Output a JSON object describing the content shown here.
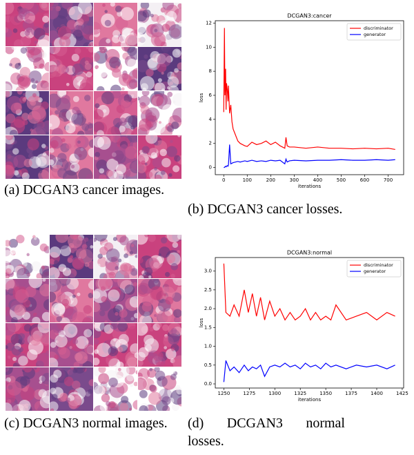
{
  "captions": [
    "(a) DCGAN3 cancer images.",
    "(b) DCGAN3 cancer losses.",
    "(c) DCGAN3 normal images.",
    "(d) DCGAN3 normal losses."
  ],
  "chart_data": [
    {
      "type": "line",
      "title": "DCGAN3:cancer",
      "x_label": "iterations",
      "y_label": "loss",
      "legend": "upper right",
      "x": [
        0,
        3,
        5,
        8,
        10,
        12,
        15,
        18,
        20,
        25,
        30,
        35,
        40,
        50,
        60,
        70,
        80,
        90,
        100,
        120,
        140,
        160,
        180,
        200,
        220,
        240,
        260,
        265,
        270,
        280,
        300,
        350,
        400,
        450,
        500,
        550,
        600,
        650,
        700,
        730
      ],
      "series": [
        {
          "name": "discriminator",
          "color": "#ff0000",
          "values": [
            4.6,
            11.6,
            6.0,
            8.2,
            4.8,
            7.0,
            6.5,
            5.5,
            6.8,
            4.5,
            5.2,
            3.8,
            3.2,
            2.7,
            2.2,
            2.0,
            1.9,
            1.8,
            1.75,
            2.1,
            1.9,
            2.0,
            2.2,
            1.9,
            2.1,
            1.8,
            1.6,
            2.5,
            1.8,
            1.7,
            1.7,
            1.6,
            1.7,
            1.6,
            1.6,
            1.55,
            1.6,
            1.55,
            1.6,
            1.5
          ]
        },
        {
          "name": "generator",
          "color": "#0000ff",
          "values": [
            0.0,
            0.0,
            0.05,
            0.1,
            0.05,
            0.1,
            0.15,
            0.1,
            0.2,
            1.9,
            0.3,
            0.35,
            0.4,
            0.45,
            0.5,
            0.45,
            0.5,
            0.55,
            0.5,
            0.6,
            0.5,
            0.55,
            0.5,
            0.6,
            0.55,
            0.6,
            0.3,
            0.7,
            0.45,
            0.55,
            0.6,
            0.55,
            0.6,
            0.6,
            0.65,
            0.6,
            0.6,
            0.65,
            0.6,
            0.65
          ]
        }
      ],
      "xlim": [
        -36,
        766
      ],
      "xticks": [
        0,
        100,
        200,
        300,
        400,
        500,
        600,
        700
      ],
      "ylim": [
        -0.6,
        12.2
      ],
      "yticks": [
        0,
        2,
        4,
        6,
        8,
        10,
        12
      ]
    },
    {
      "type": "line",
      "title": "DCGAN3:normal",
      "x_label": "iterations",
      "y_label": "loss",
      "legend": "upper right",
      "x": [
        1250,
        1252,
        1256,
        1260,
        1265,
        1270,
        1274,
        1278,
        1282,
        1286,
        1290,
        1295,
        1300,
        1305,
        1310,
        1315,
        1320,
        1325,
        1330,
        1335,
        1340,
        1345,
        1350,
        1355,
        1360,
        1370,
        1380,
        1390,
        1400,
        1410,
        1418
      ],
      "series": [
        {
          "name": "discriminator",
          "color": "#ff0000",
          "values": [
            3.2,
            1.9,
            1.8,
            2.1,
            1.8,
            2.5,
            1.9,
            2.4,
            1.8,
            2.3,
            1.7,
            2.2,
            1.8,
            2.0,
            1.7,
            1.9,
            1.7,
            1.8,
            2.0,
            1.7,
            1.9,
            1.7,
            1.8,
            1.7,
            2.1,
            1.7,
            1.8,
            1.9,
            1.7,
            1.9,
            1.8
          ]
        },
        {
          "name": "generator",
          "color": "#0000ff",
          "values": [
            0.05,
            0.62,
            0.35,
            0.45,
            0.3,
            0.5,
            0.35,
            0.45,
            0.4,
            0.5,
            0.2,
            0.45,
            0.5,
            0.45,
            0.55,
            0.45,
            0.5,
            0.4,
            0.55,
            0.45,
            0.5,
            0.4,
            0.55,
            0.45,
            0.5,
            0.4,
            0.5,
            0.45,
            0.5,
            0.4,
            0.5
          ]
        }
      ],
      "xlim": [
        1241.6,
        1426.4
      ],
      "xticks": [
        1250,
        1275,
        1300,
        1325,
        1350,
        1375,
        1400,
        1425
      ],
      "ylim": [
        -0.11,
        3.36
      ],
      "yticks": [
        {
          "value": 0,
          "label": "0.0"
        },
        0.5,
        {
          "value": 1,
          "label": "1.0"
        },
        1.5,
        {
          "value": 2,
          "label": "2.0"
        },
        2.5,
        {
          "value": 3,
          "label": "3.0"
        }
      ]
    }
  ]
}
